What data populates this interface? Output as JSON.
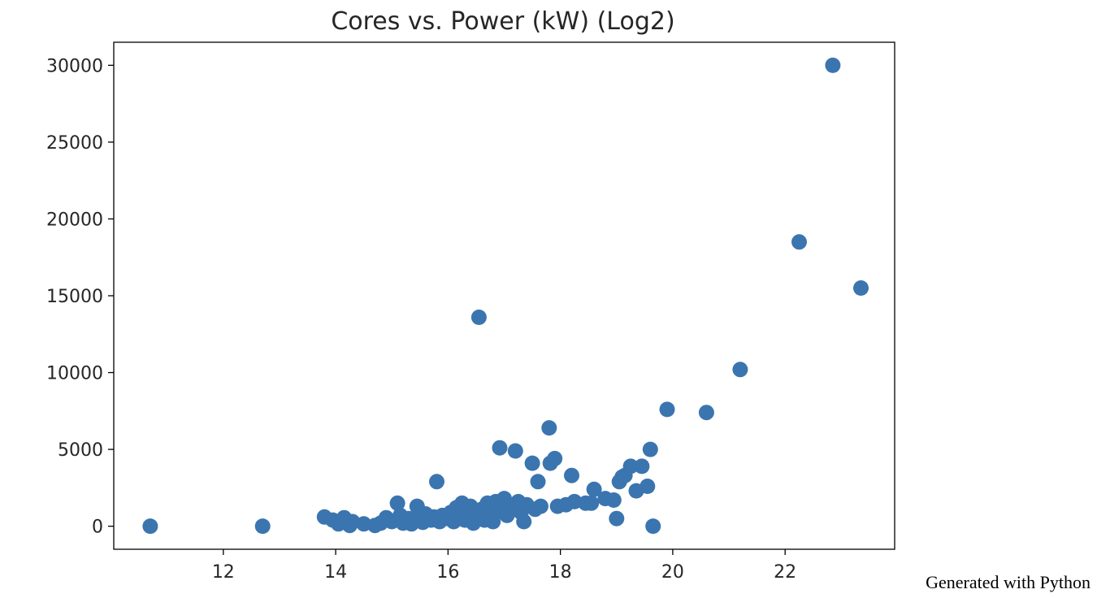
{
  "chart_data": {
    "type": "scatter",
    "title": "Cores vs. Power (kW) (Log2)",
    "xlabel": "",
    "ylabel": "",
    "xlim": [
      10.05,
      23.95
    ],
    "ylim": [
      -1500,
      31500
    ],
    "xticks": [
      12,
      14,
      16,
      18,
      20,
      22
    ],
    "yticks": [
      0,
      5000,
      10000,
      15000,
      20000,
      25000,
      30000
    ],
    "grid": false,
    "color": "#3b75af",
    "points": [
      {
        "x": 10.7,
        "y": 0
      },
      {
        "x": 12.7,
        "y": 0
      },
      {
        "x": 13.8,
        "y": 600
      },
      {
        "x": 13.95,
        "y": 400
      },
      {
        "x": 14.05,
        "y": 150
      },
      {
        "x": 14.15,
        "y": 550
      },
      {
        "x": 14.25,
        "y": 50
      },
      {
        "x": 14.3,
        "y": 300
      },
      {
        "x": 14.5,
        "y": 150
      },
      {
        "x": 14.7,
        "y": 50
      },
      {
        "x": 14.8,
        "y": 200
      },
      {
        "x": 14.9,
        "y": 550
      },
      {
        "x": 15.0,
        "y": 300
      },
      {
        "x": 15.1,
        "y": 1500
      },
      {
        "x": 15.15,
        "y": 700
      },
      {
        "x": 15.2,
        "y": 200
      },
      {
        "x": 15.3,
        "y": 500
      },
      {
        "x": 15.35,
        "y": 150
      },
      {
        "x": 15.45,
        "y": 1300
      },
      {
        "x": 15.5,
        "y": 600
      },
      {
        "x": 15.55,
        "y": 250
      },
      {
        "x": 15.6,
        "y": 800
      },
      {
        "x": 15.7,
        "y": 400
      },
      {
        "x": 15.75,
        "y": 600
      },
      {
        "x": 15.8,
        "y": 2900
      },
      {
        "x": 15.85,
        "y": 300
      },
      {
        "x": 15.9,
        "y": 700
      },
      {
        "x": 16.0,
        "y": 500
      },
      {
        "x": 16.05,
        "y": 900
      },
      {
        "x": 16.1,
        "y": 300
      },
      {
        "x": 16.15,
        "y": 1200
      },
      {
        "x": 16.2,
        "y": 600
      },
      {
        "x": 16.25,
        "y": 1500
      },
      {
        "x": 16.3,
        "y": 400
      },
      {
        "x": 16.35,
        "y": 900
      },
      {
        "x": 16.4,
        "y": 1300
      },
      {
        "x": 16.45,
        "y": 200
      },
      {
        "x": 16.5,
        "y": 700
      },
      {
        "x": 16.55,
        "y": 13600
      },
      {
        "x": 16.6,
        "y": 1100
      },
      {
        "x": 16.65,
        "y": 400
      },
      {
        "x": 16.7,
        "y": 1500
      },
      {
        "x": 16.75,
        "y": 800
      },
      {
        "x": 16.8,
        "y": 300
      },
      {
        "x": 16.85,
        "y": 1600
      },
      {
        "x": 16.9,
        "y": 1000
      },
      {
        "x": 16.92,
        "y": 5100
      },
      {
        "x": 17.0,
        "y": 1800
      },
      {
        "x": 17.05,
        "y": 700
      },
      {
        "x": 17.1,
        "y": 1300
      },
      {
        "x": 17.2,
        "y": 4900
      },
      {
        "x": 17.25,
        "y": 1600
      },
      {
        "x": 17.3,
        "y": 900
      },
      {
        "x": 17.35,
        "y": 300
      },
      {
        "x": 17.4,
        "y": 1400
      },
      {
        "x": 17.5,
        "y": 4100
      },
      {
        "x": 17.55,
        "y": 1100
      },
      {
        "x": 17.6,
        "y": 2900
      },
      {
        "x": 17.65,
        "y": 1300
      },
      {
        "x": 17.8,
        "y": 6400
      },
      {
        "x": 17.82,
        "y": 4100
      },
      {
        "x": 17.9,
        "y": 4400
      },
      {
        "x": 17.95,
        "y": 1300
      },
      {
        "x": 18.1,
        "y": 1400
      },
      {
        "x": 18.2,
        "y": 3300
      },
      {
        "x": 18.25,
        "y": 1600
      },
      {
        "x": 18.45,
        "y": 1500
      },
      {
        "x": 18.55,
        "y": 1500
      },
      {
        "x": 18.6,
        "y": 2400
      },
      {
        "x": 18.8,
        "y": 1800
      },
      {
        "x": 18.95,
        "y": 1700
      },
      {
        "x": 19.0,
        "y": 500
      },
      {
        "x": 19.05,
        "y": 2900
      },
      {
        "x": 19.1,
        "y": 3200
      },
      {
        "x": 19.15,
        "y": 3300
      },
      {
        "x": 19.25,
        "y": 3900
      },
      {
        "x": 19.35,
        "y": 2300
      },
      {
        "x": 19.45,
        "y": 3900
      },
      {
        "x": 19.55,
        "y": 2600
      },
      {
        "x": 19.6,
        "y": 5000
      },
      {
        "x": 19.65,
        "y": 0
      },
      {
        "x": 19.9,
        "y": 7600
      },
      {
        "x": 20.6,
        "y": 7400
      },
      {
        "x": 21.2,
        "y": 10200
      },
      {
        "x": 22.25,
        "y": 18500
      },
      {
        "x": 22.85,
        "y": 30000
      },
      {
        "x": 23.35,
        "y": 15500
      }
    ]
  },
  "footer": {
    "text": "Generated with Python"
  }
}
